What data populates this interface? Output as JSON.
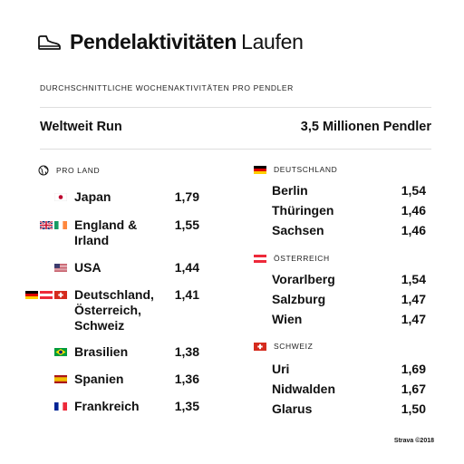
{
  "header": {
    "title_bold": "Pendelaktivitäten",
    "title_light": "Laufen",
    "icon": "shoe-icon"
  },
  "subtitle": "DURCHSCHNITTLICHE WOCHENAKTIVITÄTEN PRO PENDLER",
  "summary": {
    "left": "Weltweit Run",
    "right": "3,5 Millionen Pendler"
  },
  "left_column": {
    "heading": "PRO LAND",
    "heading_icon": "globe-icon",
    "rows": [
      {
        "name_lines": [
          "Japan"
        ],
        "value": "1,79",
        "flags": [
          "jp"
        ]
      },
      {
        "name_lines": [
          "England &",
          "Irland"
        ],
        "value": "1,55",
        "flags": [
          "gb",
          "ie"
        ]
      },
      {
        "name_lines": [
          "USA"
        ],
        "value": "1,44",
        "flags": [
          "us"
        ]
      },
      {
        "name_lines": [
          "Deutschland,",
          "Österreich,",
          "Schweiz"
        ],
        "value": "1,41",
        "flags": [
          "de",
          "at",
          "ch"
        ]
      },
      {
        "name_lines": [
          "Brasilien"
        ],
        "value": "1,38",
        "flags": [
          "br"
        ]
      },
      {
        "name_lines": [
          "Spanien"
        ],
        "value": "1,36",
        "flags": [
          "es"
        ]
      },
      {
        "name_lines": [
          "Frankreich"
        ],
        "value": "1,35",
        "flags": [
          "fr"
        ]
      }
    ]
  },
  "right_column": {
    "groups": [
      {
        "heading": "DEUTSCHLAND",
        "flag": "de",
        "rows": [
          {
            "name": "Berlin",
            "value": "1,54"
          },
          {
            "name": "Thüringen",
            "value": "1,46"
          },
          {
            "name": "Sachsen",
            "value": "1,46"
          }
        ]
      },
      {
        "heading": "ÖSTERREICH",
        "flag": "at",
        "rows": [
          {
            "name": "Vorarlberg",
            "value": "1,54"
          },
          {
            "name": "Salzburg",
            "value": "1,47"
          },
          {
            "name": "Wien",
            "value": "1,47"
          }
        ]
      },
      {
        "heading": "SCHWEIZ",
        "flag": "ch",
        "rows": [
          {
            "name": "Uri",
            "value": "1,69"
          },
          {
            "name": "Nidwalden",
            "value": "1,67"
          },
          {
            "name": "Glarus",
            "value": "1,50"
          }
        ]
      }
    ]
  },
  "chart_data": {
    "type": "table",
    "title": "Pendelaktivitäten Laufen",
    "subtitle": "DURCHSCHNITTLICHE WOCHENAKTIVITÄTEN PRO PENDLER",
    "tables": [
      {
        "heading": "PRO LAND",
        "categories": [
          "Japan",
          "England & Irland",
          "USA",
          "Deutschland, Österreich, Schweiz",
          "Brasilien",
          "Spanien",
          "Frankreich"
        ],
        "values": [
          1.79,
          1.55,
          1.44,
          1.41,
          1.38,
          1.36,
          1.35
        ]
      },
      {
        "heading": "DEUTSCHLAND",
        "categories": [
          "Berlin",
          "Thüringen",
          "Sachsen"
        ],
        "values": [
          1.54,
          1.46,
          1.46
        ]
      },
      {
        "heading": "ÖSTERREICH",
        "categories": [
          "Vorarlberg",
          "Salzburg",
          "Wien"
        ],
        "values": [
          1.54,
          1.47,
          1.47
        ]
      },
      {
        "heading": "SCHWEIZ",
        "categories": [
          "Uri",
          "Nidwalden",
          "Glarus"
        ],
        "values": [
          1.69,
          1.67,
          1.5
        ]
      }
    ]
  },
  "colors": {
    "text": "#111111",
    "rule": "#dedede"
  },
  "footer": "Strava ©2018"
}
